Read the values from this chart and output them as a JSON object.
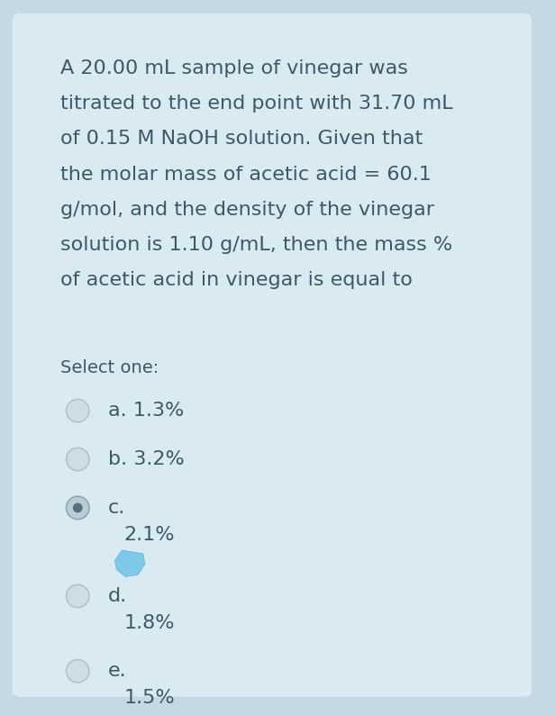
{
  "outer_bg": "#c5d8e3",
  "card_color": "#daeaf3",
  "text_color": "#3d5a63",
  "question_lines": [
    "A 20.00 mL sample of vinegar was",
    "titrated to the end point with 31.70 mL",
    "of 0.15 M NaOH solution. Given that",
    "the molar mass of acetic acid = 60.1",
    "g/mol, and the density of the vinegar",
    "solution is 1.10 g/mL, then the mass %",
    "of acetic acid in vinegar is equal to"
  ],
  "select_label": "Select one:",
  "options": [
    {
      "letter": "a. 1.3%",
      "value": null
    },
    {
      "letter": "b. 3.2%",
      "value": null
    },
    {
      "letter": "c.",
      "value": "2.1%"
    },
    {
      "letter": "d.",
      "value": "1.8%"
    },
    {
      "letter": "e.",
      "value": "1.5%"
    }
  ],
  "selected_index": 2,
  "font_size_question": 16,
  "font_size_options": 16,
  "font_size_select": 14,
  "radio_unsel_face": "#ccdde6",
  "radio_unsel_edge": "#aabfc9",
  "radio_sel_face": "#b8cdd5",
  "radio_sel_edge": "#8fa8b2",
  "radio_dot": "#5a7078",
  "leaf_color": "#7ec8e8",
  "leaf_edge": "#5ab0d8"
}
